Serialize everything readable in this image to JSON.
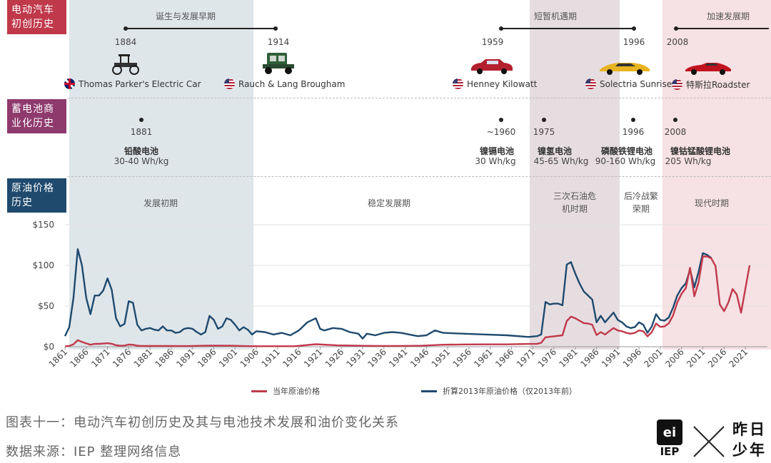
{
  "colors": {
    "band_blue": "#dfe6ea",
    "band_mauve": "#e6dde1",
    "band_pink": "#f6e1e4",
    "label_red": "#c0394b",
    "label_purple": "#8e3a6d",
    "label_navy": "#1f4a6e",
    "line_red": "#c0394b",
    "line_blue": "#1f4a6e"
  },
  "rows": {
    "ev": "电动汽车初创历史",
    "battery": "蓄电池商业化历史",
    "oil": "原油价格历史"
  },
  "ev_periods": [
    {
      "label": "诞生与发展早期",
      "start_year": "1884",
      "end_year": "1914"
    },
    {
      "label": "短暂机遇期",
      "start_year": "1959",
      "end_year": "1996"
    },
    {
      "label": "加速发展期",
      "start_year": "2008"
    }
  ],
  "cars": [
    {
      "name": "Thomas Parker's Electric Car",
      "flag": "uk-flag",
      "year": "1884",
      "icon": "vintage-car-icon"
    },
    {
      "name": "Rauch & Lang Brougham",
      "flag": "us-flag",
      "year": "1914",
      "icon": "brougham-car-icon"
    },
    {
      "name": "Henney Kilowatt",
      "flag": "us-flag",
      "year": "1959",
      "icon": "red-sedan-icon"
    },
    {
      "name": "Solectria Sunrise",
      "flag": "us-flag",
      "year": "1996",
      "icon": "yellow-car-icon"
    },
    {
      "name": "特斯拉Roadster",
      "flag": "us-flag",
      "year": "2008",
      "icon": "red-roadster-icon"
    }
  ],
  "batteries": [
    {
      "year": "1881",
      "name": "铅酸电池",
      "spec": "30-40 Wh/kg"
    },
    {
      "year": "~1960",
      "name": "镍镉电池",
      "spec": "30 Wh/kg"
    },
    {
      "year": "1975",
      "name": "镍氢电池",
      "spec": "45-65 Wh/kg"
    },
    {
      "year": "1996",
      "name": "磷酸铁锂电池",
      "spec": "90-160 Wh/kg"
    },
    {
      "year": "2008",
      "name": "镍钴锰酸锂电池",
      "spec": "205 Wh/kg"
    }
  ],
  "oil_periods": [
    {
      "label": "发展初期"
    },
    {
      "label": "稳定发展期"
    },
    {
      "label": "三次石油危\n机时期"
    },
    {
      "label": "后冷战繁\n荣期"
    },
    {
      "label": "现代时期"
    }
  ],
  "chart_data": {
    "type": "line",
    "ylim": [
      0,
      150
    ],
    "yticks": [
      "$0",
      "$50",
      "$100",
      "$150"
    ],
    "ytick_values": [
      0,
      50,
      100,
      150
    ],
    "xlim": [
      1861,
      2022
    ],
    "xticks": [
      "1861",
      "1866",
      "1871",
      "1876",
      "1881",
      "1886",
      "1891",
      "1896",
      "1901",
      "1906",
      "1911",
      "1916",
      "1921",
      "1926",
      "1931",
      "1936",
      "1941",
      "1946",
      "1951",
      "1956",
      "1961",
      "1966",
      "1971",
      "1976",
      "1981",
      "1986",
      "1991",
      "1996",
      "2001",
      "2006",
      "2011",
      "2016",
      "2021"
    ],
    "series": [
      {
        "name": "当年原油价格",
        "color": "#c0394b",
        "x": [
          1861,
          1862,
          1863,
          1864,
          1865,
          1866,
          1867,
          1868,
          1869,
          1870,
          1871,
          1872,
          1873,
          1874,
          1875,
          1876,
          1877,
          1878,
          1879,
          1880,
          1885,
          1890,
          1895,
          1900,
          1905,
          1910,
          1915,
          1920,
          1925,
          1930,
          1935,
          1940,
          1945,
          1950,
          1955,
          1960,
          1965,
          1970,
          1972,
          1973,
          1974,
          1976,
          1978,
          1979,
          1980,
          1981,
          1982,
          1983,
          1984,
          1985,
          1986,
          1987,
          1988,
          1989,
          1990,
          1991,
          1992,
          1993,
          1994,
          1995,
          1996,
          1997,
          1998,
          1999,
          2000,
          2001,
          2002,
          2003,
          2004,
          2005,
          2006,
          2007,
          2008,
          2009,
          2010,
          2011,
          2012,
          2013,
          2014,
          2015,
          2016,
          2017,
          2018,
          2019,
          2020,
          2021,
          2022
        ],
        "y": [
          0.5,
          1,
          3,
          8,
          6,
          4,
          2.5,
          3.5,
          3.5,
          3.9,
          4.3,
          3.6,
          1.8,
          1.2,
          1.4,
          2.6,
          2.4,
          1.2,
          0.9,
          0.9,
          0.9,
          0.8,
          1.4,
          1.2,
          0.6,
          0.6,
          0.6,
          3.1,
          1.7,
          1.2,
          1,
          1,
          1.2,
          2.5,
          2.8,
          2.9,
          2.9,
          3.4,
          3.6,
          4.8,
          11.6,
          12.8,
          14,
          31.6,
          37,
          35,
          32,
          29,
          28.5,
          27,
          14.4,
          18,
          15,
          19,
          23,
          20,
          19,
          17,
          16,
          17,
          20,
          19,
          12.7,
          18,
          28.5,
          24.4,
          25,
          28.8,
          38.3,
          54.5,
          65,
          72,
          97,
          62,
          79,
          111,
          111,
          108.6,
          99,
          52,
          43.7,
          54.3,
          71,
          64,
          41.8,
          70.9,
          100
        ]
      },
      {
        "name": "折算2013年原油价格（仅2013年前）",
        "color": "#1f4a6e",
        "x": [
          1861,
          1862,
          1863,
          1864,
          1865,
          1866,
          1867,
          1868,
          1869,
          1870,
          1871,
          1872,
          1873,
          1874,
          1875,
          1876,
          1877,
          1878,
          1879,
          1880,
          1881,
          1882,
          1883,
          1884,
          1885,
          1886,
          1887,
          1888,
          1889,
          1890,
          1891,
          1892,
          1893,
          1894,
          1895,
          1896,
          1897,
          1898,
          1899,
          1900,
          1901,
          1902,
          1903,
          1904,
          1905,
          1906,
          1908,
          1910,
          1912,
          1914,
          1916,
          1918,
          1920,
          1921,
          1922,
          1924,
          1926,
          1928,
          1930,
          1931,
          1932,
          1934,
          1936,
          1938,
          1940,
          1942,
          1944,
          1946,
          1948,
          1950,
          1955,
          1960,
          1965,
          1970,
          1972,
          1973,
          1974,
          1975,
          1976,
          1977,
          1978,
          1979,
          1980,
          1981,
          1982,
          1983,
          1984,
          1985,
          1986,
          1987,
          1988,
          1989,
          1990,
          1991,
          1992,
          1993,
          1994,
          1995,
          1996,
          1997,
          1998,
          1999,
          2000,
          2001,
          2002,
          2003,
          2004,
          2005,
          2006,
          2007,
          2008,
          2009,
          2010,
          2011,
          2012,
          2013
        ],
        "y": [
          13,
          24,
          60,
          120,
          100,
          60,
          40,
          63,
          63,
          69,
          84,
          70,
          35,
          25,
          28,
          56,
          54,
          27,
          20,
          22,
          23,
          21,
          20,
          25,
          20,
          20,
          17,
          18,
          22,
          23,
          22,
          18,
          15,
          18,
          38,
          33,
          22,
          25,
          35,
          33,
          27,
          20,
          24,
          21,
          15,
          19,
          18,
          15,
          17,
          14,
          20,
          30,
          35,
          22,
          20,
          23,
          22,
          18,
          16,
          10,
          16,
          14,
          17,
          18,
          17,
          15,
          13,
          14,
          20,
          17,
          16,
          15,
          14,
          12,
          13,
          15,
          55,
          52,
          53,
          53,
          51,
          101,
          104,
          90,
          78,
          68,
          63,
          58,
          30,
          38,
          30,
          36,
          42,
          33,
          30,
          25,
          23,
          24,
          30,
          27,
          17,
          25,
          40,
          33,
          32,
          36,
          48,
          63,
          72,
          78,
          95,
          73,
          92,
          115,
          113,
          109
        ]
      }
    ]
  },
  "legend": {
    "a": "当年原油价格",
    "b": "折算2013年原油价格（仅2013年前）"
  },
  "footer": {
    "caption": "图表十一：电动汽车初创历史及其与电池技术发展和油价变化关系",
    "source": "数据来源：IEP 整理网络信息",
    "logo_text": "IEP",
    "logo_small": "ei",
    "brand": "昨日少年"
  }
}
